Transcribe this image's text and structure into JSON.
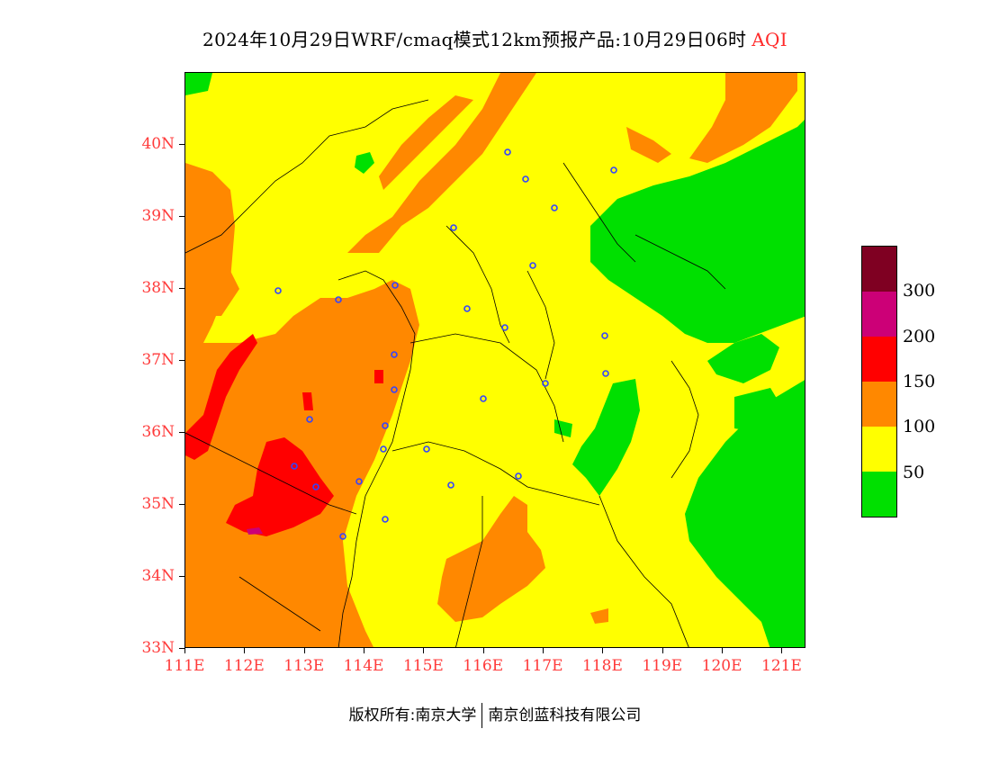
{
  "title": {
    "main": "2024年10月29日WRF/cmaq模式12km预报产品:10月29日06时",
    "variable": "AQI",
    "variable_color": "#ff2a2a"
  },
  "map": {
    "lon_range": [
      111,
      121.4
    ],
    "lat_range": [
      33,
      41
    ],
    "lat_labels": [
      "33N",
      "34N",
      "35N",
      "36N",
      "37N",
      "38N",
      "39N",
      "40N"
    ],
    "lon_labels": [
      "111E",
      "112E",
      "113E",
      "114E",
      "115E",
      "116E",
      "117E",
      "118E",
      "119E",
      "120E",
      "121E"
    ],
    "label_color": "#ff3a3a"
  },
  "legend": {
    "levels": [
      {
        "label": "",
        "color": "#7f0022"
      },
      {
        "label": "300",
        "color": "#cc0077"
      },
      {
        "label": "200",
        "color": "#ff0000"
      },
      {
        "label": "150",
        "color": "#ff8800"
      },
      {
        "label": "100",
        "color": "#ffff00"
      },
      {
        "label": "50",
        "color": "#00e000"
      }
    ],
    "boundary_labels": [
      "300",
      "200",
      "150",
      "100",
      "50"
    ]
  },
  "footer": {
    "copyright": "版权所有:南京大学",
    "company": "南京创蓝科技有限公司"
  }
}
